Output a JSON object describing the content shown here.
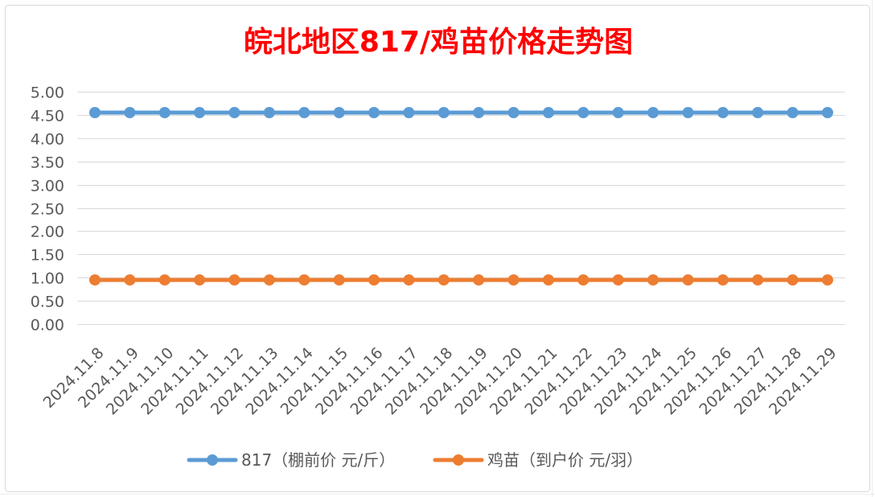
{
  "chart_data": {
    "type": "line",
    "title": "皖北地区817/鸡苗价格走势图",
    "title_color": "#FF0000",
    "categories": [
      "2024.11.8",
      "2024.11.9",
      "2024.11.10",
      "2024.11.11",
      "2024.11.12",
      "2024.11.13",
      "2024.11.14",
      "2024.11.15",
      "2024.11.16",
      "2024.11.17",
      "2024.11.18",
      "2024.11.19",
      "2024.11.20",
      "2024.11.21",
      "2024.11.22",
      "2024.11.23",
      "2024.11.24",
      "2024.11.25",
      "2024.11.26",
      "2024.11.27",
      "2024.11.28",
      "2024.11.29"
    ],
    "series": [
      {
        "name": "817（棚前价 元/斤）",
        "color": "#5B9BD5",
        "marker": "circle",
        "values": [
          4.55,
          4.55,
          4.55,
          4.55,
          4.55,
          4.55,
          4.55,
          4.55,
          4.55,
          4.55,
          4.55,
          4.55,
          4.55,
          4.55,
          4.55,
          4.55,
          4.55,
          4.55,
          4.55,
          4.55,
          4.55,
          4.55
        ]
      },
      {
        "name": "鸡苗（到户价 元/羽）",
        "color": "#ED7D31",
        "marker": "circle",
        "values": [
          0.95,
          0.95,
          0.95,
          0.95,
          0.95,
          0.95,
          0.95,
          0.95,
          0.95,
          0.95,
          0.95,
          0.95,
          0.95,
          0.95,
          0.95,
          0.95,
          0.95,
          0.95,
          0.95,
          0.95,
          0.95,
          0.95
        ]
      }
    ],
    "ylim": [
      0,
      5
    ],
    "yticks": [
      0,
      0.5,
      1,
      1.5,
      2,
      2.5,
      3,
      3.5,
      4,
      4.5,
      5
    ],
    "ytick_labels": [
      "0.00",
      "0.50",
      "1.00",
      "1.50",
      "2.00",
      "2.50",
      "3.00",
      "3.50",
      "4.00",
      "4.50",
      "5.00"
    ],
    "grid": true,
    "gridline_color": "#D9D9D9",
    "axis_text_color": "#595959",
    "legend": "bottom"
  }
}
